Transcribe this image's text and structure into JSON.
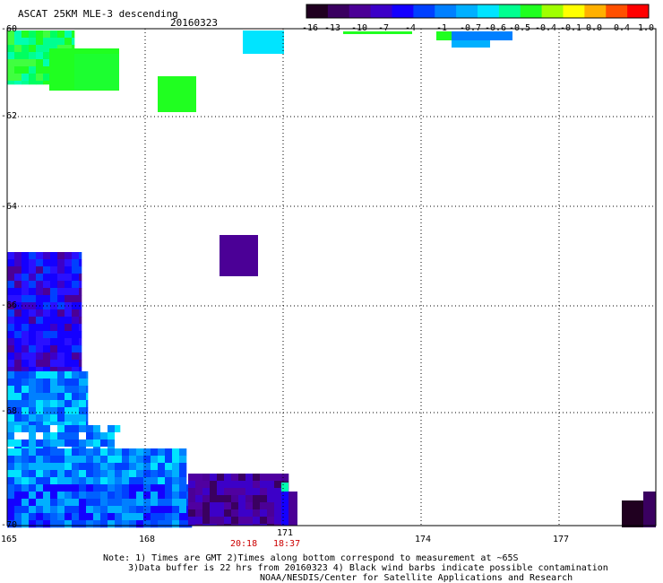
{
  "header": {
    "title": "ASCAT 25KM MLE-3 descending",
    "date": "20160323"
  },
  "colorbar": {
    "tick_labels": [
      "-16",
      "-13",
      "-10",
      "-7",
      "-4",
      "-1",
      "-0.7",
      "-0.6",
      "-0.5",
      "-0.4",
      "-0.1",
      "0.0",
      "0.4",
      "1.0"
    ],
    "colors": [
      "#200020",
      "#3a0060",
      "#4b0096",
      "#3c00c8",
      "#1400ff",
      "#0040ff",
      "#0080ff",
      "#00b0ff",
      "#00e4ff",
      "#00ff90",
      "#20ff20",
      "#a0ff00",
      "#ffff00",
      "#ffb000",
      "#ff5000",
      "#ff0000"
    ]
  },
  "map": {
    "lon_labels": [
      "165",
      "168",
      "171",
      "174",
      "177"
    ],
    "lat_labels": [
      "-60",
      "-62",
      "-64",
      "-66",
      "-68",
      "-70"
    ],
    "time_labels": [
      "20:18",
      "18:37"
    ],
    "time_color": "#cc0000",
    "grid": "dotted"
  },
  "notes": {
    "line1": "Note: 1) Times are GMT 2)Times along bottom correspond to measurement at ~65S",
    "line2": "3)Data buffer is 22 hrs from 20160323 4) Black wind barbs indicate possible contamination",
    "line3": "NOAA/NESDIS/Center for Satellite Applications and Research"
  }
}
